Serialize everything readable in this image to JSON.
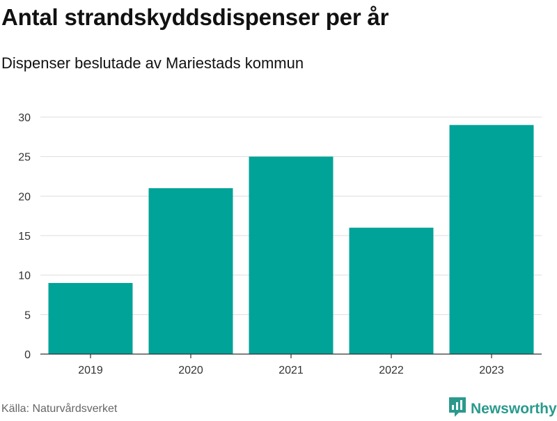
{
  "header": {
    "title": "Antal strandskyddsdispenser per år",
    "subtitle": "Dispenser beslutade av Mariestads kommun"
  },
  "footer": {
    "source": "Källa: Naturvårdsverket",
    "brand": "Newsworthy",
    "brand_icon": "newsworthy-logo-icon"
  },
  "colors": {
    "bar": "#00a398",
    "grid": "#dddddd",
    "axis": "#333333",
    "tick_text": "#333333",
    "brand": "#2a9a8d"
  },
  "chart_data": {
    "type": "bar",
    "title": "Antal strandskyddsdispenser per år",
    "subtitle": "Dispenser beslutade av Mariestads kommun",
    "categories": [
      "2019",
      "2020",
      "2021",
      "2022",
      "2023"
    ],
    "values": [
      9,
      21,
      25,
      16,
      29
    ],
    "xlabel": "",
    "ylabel": "",
    "ylim": [
      0,
      30
    ],
    "yticks": [
      0,
      5,
      10,
      15,
      20,
      25,
      30
    ],
    "grid": true,
    "legend": "none"
  }
}
